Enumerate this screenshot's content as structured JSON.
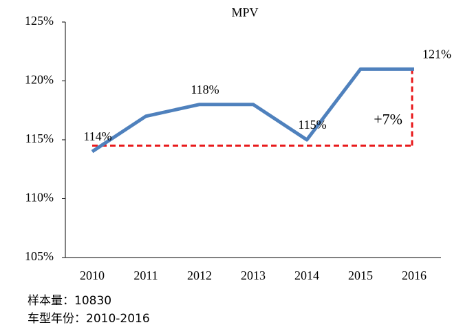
{
  "chart_data": {
    "type": "line",
    "title": "MPV",
    "categories": [
      "2010",
      "2011",
      "2012",
      "2013",
      "2014",
      "2015",
      "2016"
    ],
    "series": [
      {
        "name": "MPV",
        "color": "#4f81bd",
        "values": [
          114,
          117,
          118,
          118,
          115,
          121,
          121
        ],
        "value_labels": [
          "114%",
          null,
          "118%",
          null,
          "115%",
          null,
          "121%"
        ]
      }
    ],
    "ylim": [
      105,
      125
    ],
    "yticks": [
      {
        "value": 105,
        "label": "105%"
      },
      {
        "value": 110,
        "label": "110%"
      },
      {
        "value": 115,
        "label": "115%"
      },
      {
        "value": 120,
        "label": "120%"
      },
      {
        "value": 125,
        "label": "125%"
      }
    ],
    "bracket": {
      "label": "+7%",
      "from": 114.5,
      "to": 121,
      "color": "#e8191b"
    },
    "notes": [
      "样本量：10830",
      "车型年份：2010-2016"
    ]
  }
}
